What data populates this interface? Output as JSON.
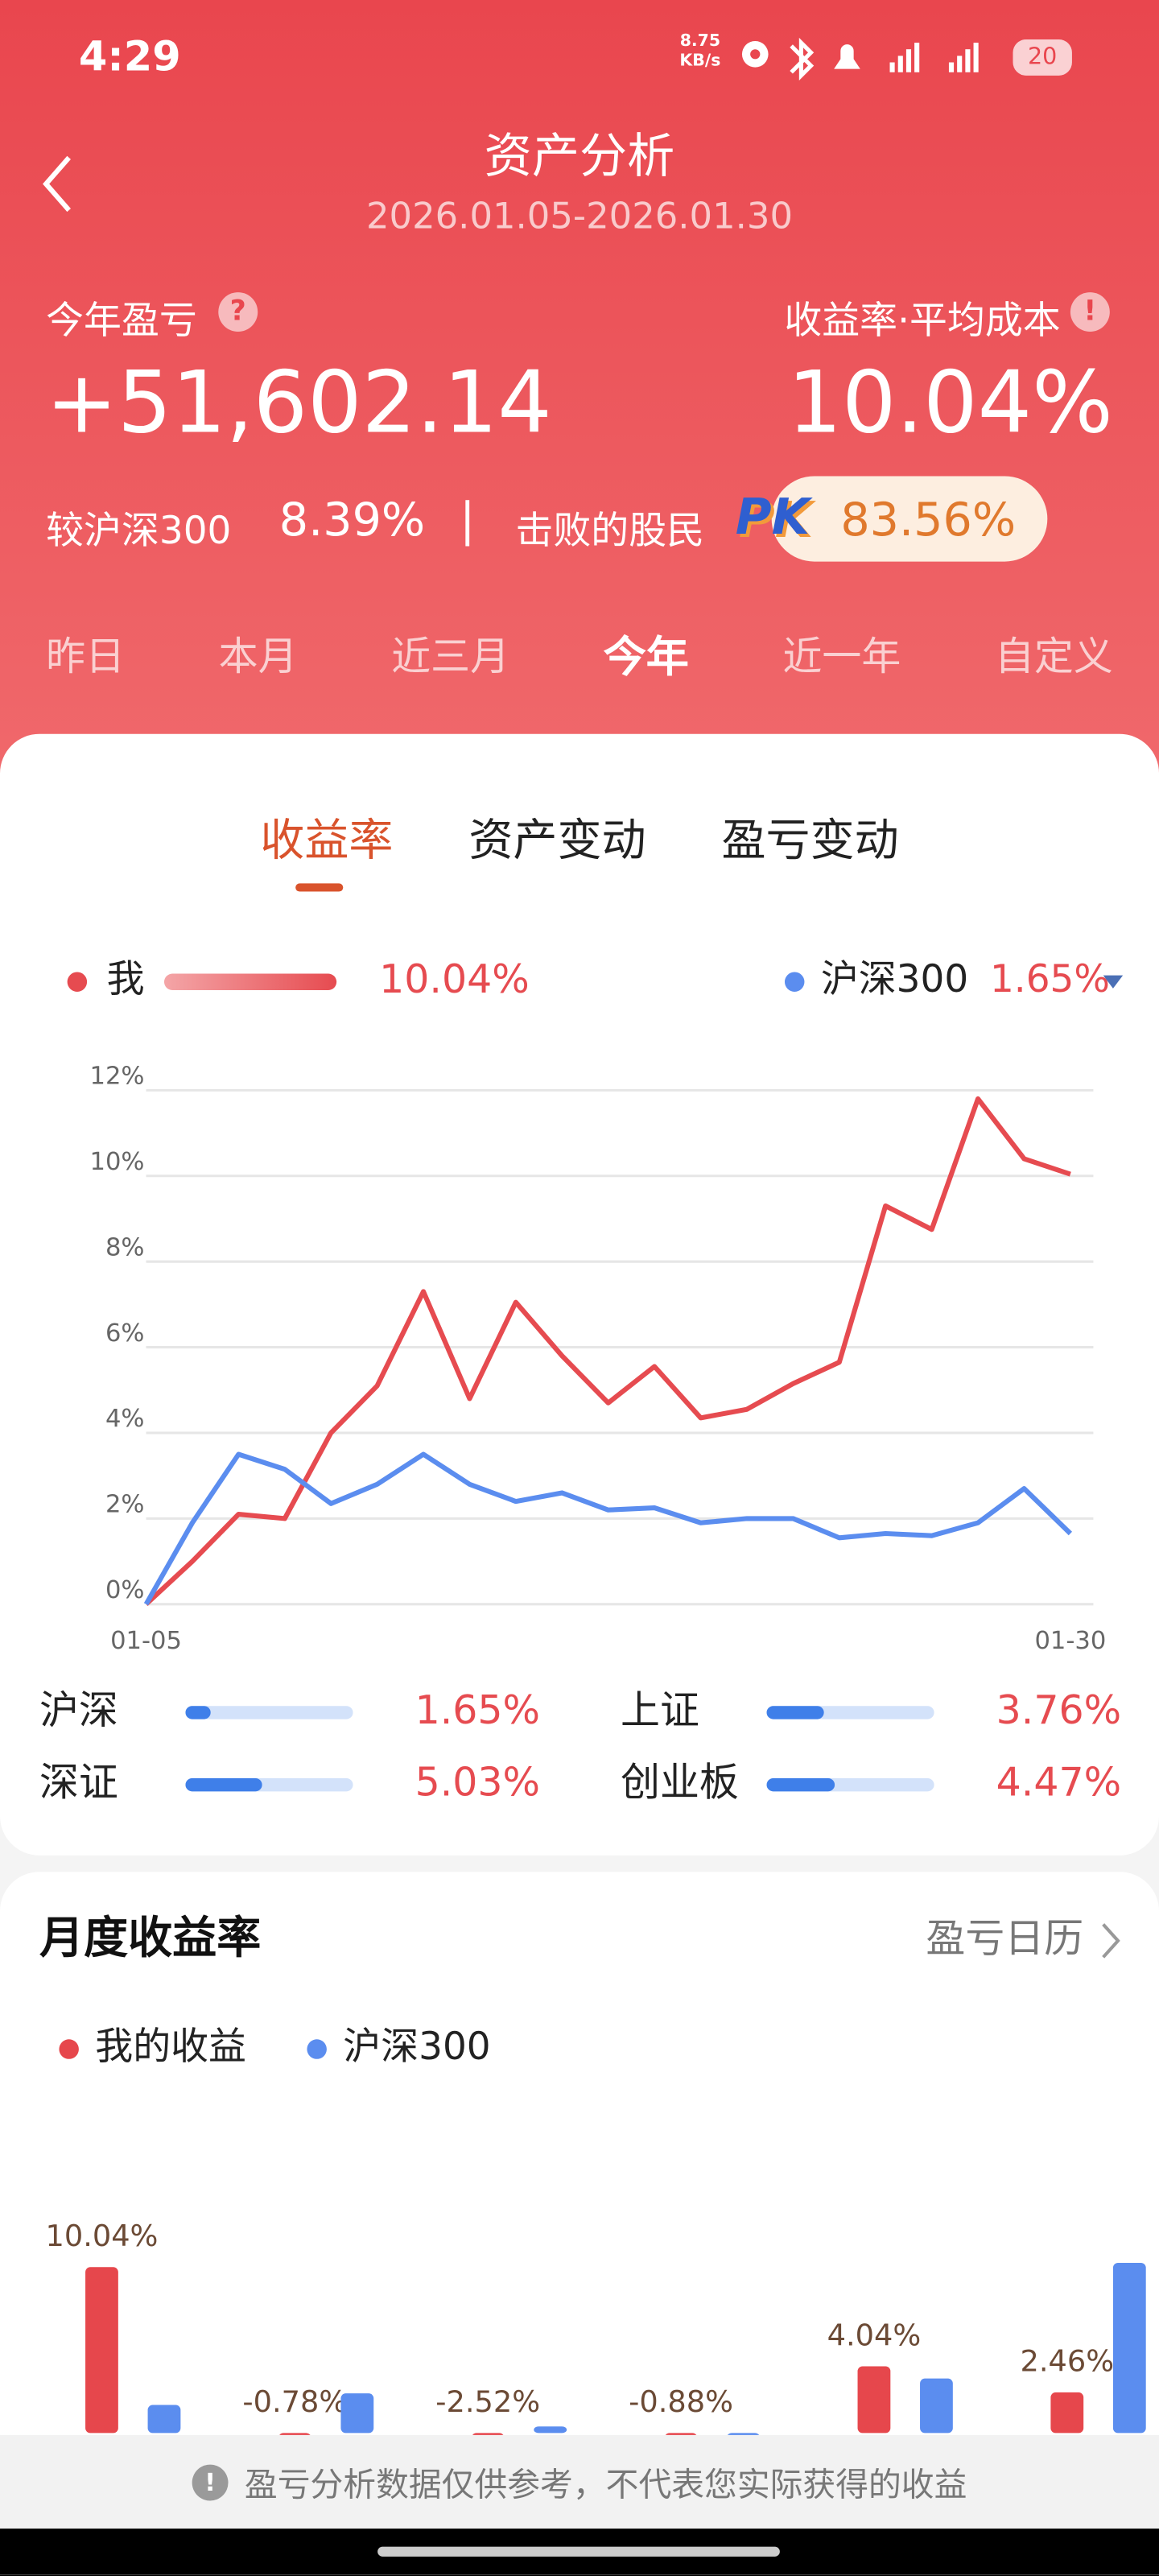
{
  "status_bar": {
    "time": "4:29",
    "net_speed": "8.75",
    "net_unit": "KB/s",
    "battery": "20"
  },
  "header": {
    "title": "资产分析",
    "date_range": "2026.01.05-2026.01.30"
  },
  "summary": {
    "pnl_label": "今年盈亏",
    "pnl_value": "+51,602.14",
    "rate_label": "收益率·平均成本",
    "rate_value": "10.04%",
    "compare_label": "较沪深300",
    "compare_value": "8.39%",
    "beat_label": "击败的股民",
    "pk": "PK",
    "beat_value": "83.56%"
  },
  "periods": [
    "昨日",
    "本月",
    "近三月",
    "今年",
    "近一年",
    "自定义"
  ],
  "tabs": [
    "收益率",
    "资产变动",
    "盈亏变动"
  ],
  "chart_data": [
    {
      "type": "line",
      "categories": [
        "01-05",
        null,
        null,
        null,
        null,
        null,
        null,
        null,
        null,
        null,
        null,
        null,
        null,
        null,
        null,
        null,
        null,
        null,
        null,
        null,
        "01-30"
      ],
      "series": [
        {
          "name": "我",
          "color": "#e64b50",
          "legend_value": "10.04%",
          "values": [
            0,
            1.0,
            2.1,
            2.0,
            4.0,
            5.1,
            7.3,
            4.8,
            7.05,
            5.8,
            4.7,
            5.55,
            4.35,
            4.55,
            5.15,
            5.65,
            9.3,
            8.75,
            11.8,
            10.4,
            10.04
          ]
        },
        {
          "name": "沪深300",
          "color": "#5b8def",
          "legend_value": "1.65%",
          "values": [
            0,
            1.9,
            3.5,
            3.15,
            2.35,
            2.8,
            3.5,
            2.8,
            2.4,
            2.6,
            2.2,
            2.25,
            1.9,
            2.0,
            2.0,
            1.55,
            1.65,
            1.6,
            1.9,
            2.7,
            1.65
          ]
        }
      ],
      "ylim": [
        0,
        12
      ],
      "yticks": [
        {
          "value": 0,
          "label": "0%"
        },
        {
          "value": 2,
          "label": "2%"
        },
        {
          "value": 4,
          "label": "4%"
        },
        {
          "value": 6,
          "label": "6%"
        },
        {
          "value": 8,
          "label": "8%"
        },
        {
          "value": 10,
          "label": "10%"
        },
        {
          "value": 12,
          "label": "12%"
        }
      ],
      "grid": true
    },
    {
      "type": "bar",
      "orientation": "horizontal",
      "categories": [
        "沪深",
        "上证",
        "深证",
        "创业板"
      ],
      "values": [
        1.65,
        3.76,
        5.03,
        4.47
      ],
      "value_labels": [
        "1.65%",
        "3.76%",
        "5.03%",
        "4.47%"
      ],
      "xlim": [
        0,
        11
      ],
      "color": "#3f7fe9"
    },
    {
      "type": "bar",
      "title": "月度收益率",
      "link_text": "盈亏日历",
      "categories": [
        null,
        null,
        null,
        null,
        null,
        null
      ],
      "series": [
        {
          "name": "我的收益",
          "color": "#e6474c",
          "values": [
            10.04,
            -0.78,
            -2.52,
            -0.88,
            4.04,
            2.46
          ],
          "value_labels": [
            "10.04%",
            "-0.78%",
            "-2.52%",
            "-0.88%",
            "4.04%",
            "2.46%"
          ]
        },
        {
          "name": "沪深300",
          "color": "#5b8def",
          "values": [
            1.7,
            2.4,
            0.4,
            -0.5,
            3.3,
            10.3
          ]
        }
      ],
      "ylim": [
        -3,
        12
      ]
    }
  ],
  "footer": {
    "notice": "盈亏分析数据仅供参考，不代表您实际获得的收益"
  }
}
